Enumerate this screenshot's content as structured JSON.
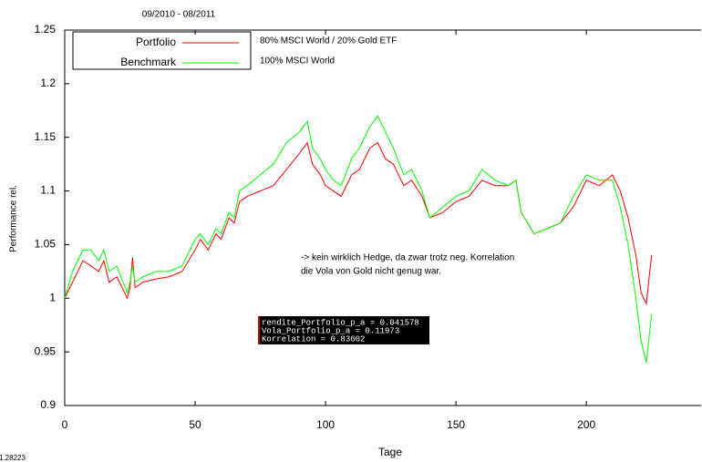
{
  "chart_data": {
    "type": "line",
    "title": "09/2010 - 08/2011",
    "x_label": "Tage",
    "y_label": "Performance rel.",
    "x": [
      0,
      3,
      7,
      10,
      13,
      15,
      17,
      20,
      24,
      25,
      26,
      27,
      30,
      35,
      40,
      45,
      50,
      52,
      55,
      58,
      60,
      63,
      65,
      67,
      70,
      75,
      80,
      85,
      90,
      93,
      95,
      98,
      100,
      103,
      106,
      110,
      113,
      117,
      120,
      123,
      126,
      130,
      133,
      137,
      140,
      145,
      150,
      155,
      160,
      165,
      170,
      173,
      175,
      180,
      185,
      190,
      195,
      200,
      205,
      210,
      213,
      216,
      219,
      221,
      223,
      225
    ],
    "series": [
      {
        "name": "Portfolio",
        "description": "80% MSCI World / 20% Gold ETF",
        "color": "#ff0000",
        "values": [
          1.0,
          1.015,
          1.035,
          1.03,
          1.025,
          1.035,
          1.015,
          1.02,
          1.0,
          1.01,
          1.038,
          1.01,
          1.015,
          1.018,
          1.02,
          1.025,
          1.045,
          1.055,
          1.045,
          1.06,
          1.055,
          1.075,
          1.07,
          1.09,
          1.095,
          1.1,
          1.105,
          1.12,
          1.135,
          1.145,
          1.125,
          1.115,
          1.105,
          1.1,
          1.095,
          1.115,
          1.12,
          1.14,
          1.145,
          1.13,
          1.125,
          1.105,
          1.11,
          1.095,
          1.075,
          1.08,
          1.09,
          1.095,
          1.11,
          1.105,
          1.105,
          1.11,
          1.08,
          1.06,
          1.065,
          1.07,
          1.085,
          1.11,
          1.105,
          1.115,
          1.1,
          1.075,
          1.04,
          1.005,
          0.995,
          1.04
        ]
      },
      {
        "name": "Benchmark",
        "description": "100% MSCI World",
        "color": "#00ff00",
        "values": [
          1.0,
          1.025,
          1.045,
          1.045,
          1.035,
          1.045,
          1.025,
          1.03,
          1.005,
          1.015,
          1.03,
          1.015,
          1.02,
          1.025,
          1.025,
          1.03,
          1.055,
          1.06,
          1.05,
          1.065,
          1.06,
          1.08,
          1.075,
          1.1,
          1.105,
          1.115,
          1.125,
          1.145,
          1.155,
          1.165,
          1.14,
          1.13,
          1.12,
          1.11,
          1.105,
          1.13,
          1.14,
          1.16,
          1.17,
          1.155,
          1.14,
          1.115,
          1.12,
          1.1,
          1.075,
          1.085,
          1.095,
          1.1,
          1.12,
          1.11,
          1.105,
          1.11,
          1.08,
          1.06,
          1.065,
          1.07,
          1.095,
          1.115,
          1.11,
          1.11,
          1.085,
          1.05,
          1.0,
          0.96,
          0.94,
          0.985
        ]
      }
    ],
    "xlim": [
      0,
      244
    ],
    "xticks": [
      0,
      50,
      100,
      150,
      200
    ],
    "ylim": [
      0.9,
      1.25
    ],
    "yticks": [
      0.9,
      0.95,
      1,
      1.05,
      1.1,
      1.15,
      1.2,
      1.25
    ],
    "grid": false,
    "annotation": [
      "-> kein wirklich Hedge, da zwar trotz neg. Korrelation",
      "die Vola von Gold nicht genug war."
    ],
    "console_lines": [
      "rendite_Portfolio_p_a =  0.041578",
      "Vola_Portfolio_p_a =  0.11973",
      "Korrelation =  0.83602"
    ],
    "corner_value": "1.28223"
  }
}
